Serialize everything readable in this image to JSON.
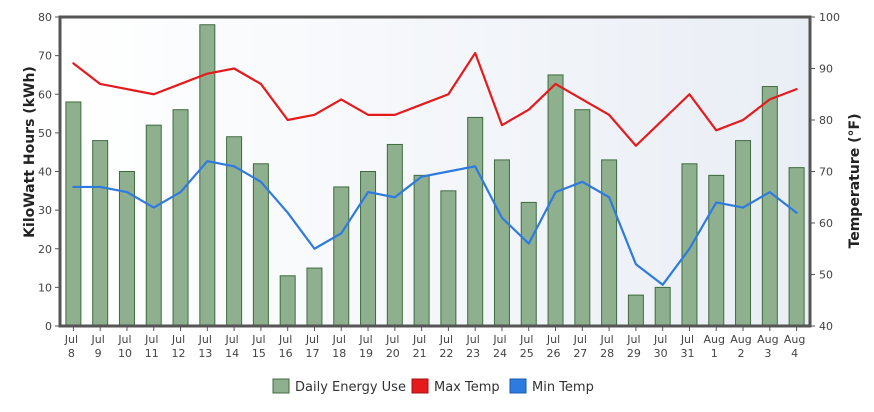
{
  "chart_data": {
    "type": "bar",
    "categories": [
      [
        "Jul",
        "8"
      ],
      [
        "Jul",
        "9"
      ],
      [
        "Jul",
        "10"
      ],
      [
        "Jul",
        "11"
      ],
      [
        "Jul",
        "12"
      ],
      [
        "Jul",
        "13"
      ],
      [
        "Jul",
        "14"
      ],
      [
        "Jul",
        "15"
      ],
      [
        "Jul",
        "16"
      ],
      [
        "Jul",
        "17"
      ],
      [
        "Jul",
        "18"
      ],
      [
        "Jul",
        "19"
      ],
      [
        "Jul",
        "20"
      ],
      [
        "Jul",
        "21"
      ],
      [
        "Jul",
        "22"
      ],
      [
        "Jul",
        "23"
      ],
      [
        "Jul",
        "24"
      ],
      [
        "Jul",
        "25"
      ],
      [
        "Jul",
        "26"
      ],
      [
        "Jul",
        "27"
      ],
      [
        "Jul",
        "28"
      ],
      [
        "Jul",
        "29"
      ],
      [
        "Jul",
        "30"
      ],
      [
        "Jul",
        "31"
      ],
      [
        "Aug",
        "1"
      ],
      [
        "Aug",
        "2"
      ],
      [
        "Aug",
        "3"
      ],
      [
        "Aug",
        "4"
      ]
    ],
    "ylabel": "KiloWatt Hours (kWh)",
    "y2label": "Temperature (°F)",
    "ylim": [
      0,
      80
    ],
    "yticks": [
      0,
      10,
      20,
      30,
      40,
      50,
      60,
      70,
      80
    ],
    "y2lim": [
      40,
      100
    ],
    "y2ticks": [
      40,
      50,
      60,
      70,
      80,
      90,
      100
    ],
    "grid": false,
    "legend_position": "bottom-center",
    "series": [
      {
        "name": "Daily Energy Use",
        "type": "bar",
        "axis": "left",
        "color": "#8fb08f",
        "values": [
          58,
          48,
          40,
          52,
          56,
          78,
          49,
          42,
          13,
          15,
          36,
          40,
          47,
          39,
          35,
          54,
          43,
          32,
          65,
          56,
          43,
          8,
          10,
          42,
          39,
          48,
          62,
          41
        ]
      },
      {
        "name": "Max Temp",
        "type": "line",
        "axis": "right",
        "color": "#e41a1c",
        "values": [
          91,
          87,
          86,
          85,
          87,
          89,
          90,
          87,
          80,
          81,
          84,
          81,
          81,
          83,
          85,
          93,
          79,
          82,
          87,
          84,
          81,
          75,
          80,
          85,
          78,
          80,
          84,
          86
        ]
      },
      {
        "name": "Min Temp",
        "type": "line",
        "axis": "right",
        "color": "#2e7be0",
        "values": [
          67,
          67,
          66,
          63,
          66,
          72,
          71,
          68,
          62,
          55,
          58,
          66,
          65,
          69,
          70,
          71,
          61,
          56,
          66,
          68,
          65,
          52,
          48,
          55,
          64,
          63,
          66,
          62
        ]
      }
    ]
  }
}
